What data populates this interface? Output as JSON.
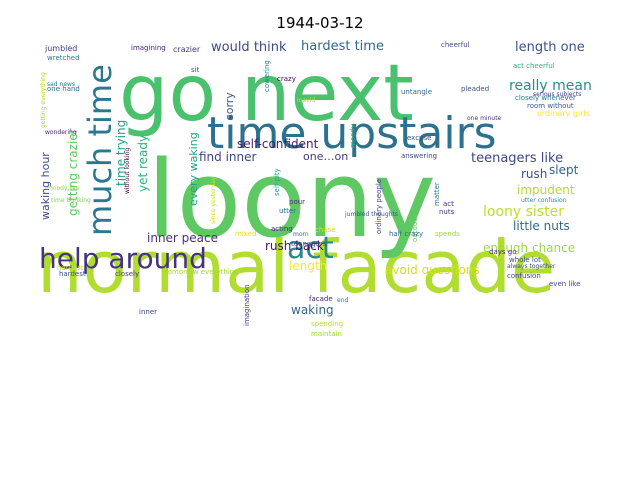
{
  "chart_data": {
    "type": "wordcloud",
    "title": "1944-03-12",
    "words": [
      {
        "text": "normal facade",
        "color": "#b0dd2f"
      },
      {
        "text": "loony",
        "color": "#5ec962"
      },
      {
        "text": "go next",
        "color": "#4ac16d"
      },
      {
        "text": "time upstairs",
        "color": "#2c728e"
      },
      {
        "text": "help around",
        "color": "#46337f"
      },
      {
        "text": "much time",
        "color": "#2a788e"
      },
      {
        "text": "act",
        "color": "#238a8d"
      },
      {
        "text": "hardest time",
        "color": "#31688e"
      },
      {
        "text": "length one",
        "color": "#3b528b"
      },
      {
        "text": "would think",
        "color": "#3e4a89"
      },
      {
        "text": "really mean",
        "color": "#21918c"
      },
      {
        "text": "self-confident",
        "color": "#481b6d"
      },
      {
        "text": "find inner",
        "color": "#414487"
      },
      {
        "text": "one…on",
        "color": "#443983"
      },
      {
        "text": "teenagers like",
        "color": "#404588"
      },
      {
        "text": "getting crazier",
        "color": "#5ec962"
      },
      {
        "text": "waking hour",
        "color": "#3e4c8a"
      },
      {
        "text": "yet ready",
        "color": "#2fb47c"
      },
      {
        "text": "sorry",
        "color": "#38598c"
      },
      {
        "text": "time trying",
        "color": "#1fa088"
      },
      {
        "text": "every waking",
        "color": "#20a486"
      },
      {
        "text": "inner peace",
        "color": "#46307e"
      },
      {
        "text": "rush back",
        "color": "#471365"
      },
      {
        "text": "length",
        "color": "#fde725"
      },
      {
        "text": "waking",
        "color": "#31688e"
      },
      {
        "text": "avoid questions",
        "color": "#d8e219"
      },
      {
        "text": "enough chance",
        "color": "#9bd93c"
      },
      {
        "text": "little nuts",
        "color": "#30688e"
      },
      {
        "text": "loony sister",
        "color": "#bddf26"
      },
      {
        "text": "impudent",
        "color": "#b5de2b"
      },
      {
        "text": "rush",
        "color": "#3d4e8a"
      },
      {
        "text": "slept",
        "color": "#33638d"
      },
      {
        "text": "jumbled",
        "color": "#443983"
      },
      {
        "text": "wretched",
        "color": "#287c8e"
      },
      {
        "text": "one hand",
        "color": "#2c728e"
      },
      {
        "text": "sad news",
        "color": "#2a788e"
      },
      {
        "text": "getting everything",
        "color": "#addc30"
      },
      {
        "text": "wondering",
        "color": "#482677"
      },
      {
        "text": "moody like",
        "color": "#8fd744"
      },
      {
        "text": "time thinking",
        "color": "#7ad151"
      },
      {
        "text": "hardest",
        "color": "#3b528b"
      },
      {
        "text": "imagining",
        "color": "#482173"
      },
      {
        "text": "crazier",
        "color": "#453882"
      },
      {
        "text": "cheerful",
        "color": "#404688"
      },
      {
        "text": "act cheerful",
        "color": "#2db27d"
      },
      {
        "text": "closely whenever",
        "color": "#2a788e"
      },
      {
        "text": "room without",
        "color": "#355f8d"
      },
      {
        "text": "serious subjects",
        "color": "#443a83"
      },
      {
        "text": "pleaded",
        "color": "#3b528b"
      },
      {
        "text": "ordinary girls",
        "color": "#fde725"
      },
      {
        "text": "one minute",
        "color": "#46337f"
      },
      {
        "text": "untangle",
        "color": "#31688e"
      },
      {
        "text": "sit",
        "color": "#3e4989"
      },
      {
        "text": "crazy",
        "color": "#440154"
      },
      {
        "text": "cowering",
        "color": "#26828e"
      },
      {
        "text": "loavid",
        "color": "#c2df23"
      },
      {
        "text": "excuse",
        "color": "#3b528b"
      },
      {
        "text": "answering",
        "color": "#3e4a89"
      },
      {
        "text": "moody",
        "color": "#29af7f"
      },
      {
        "text": "ordinary people",
        "color": "#414487"
      },
      {
        "text": "matter",
        "color": "#2a788e"
      },
      {
        "text": "act",
        "color": "#46327e"
      },
      {
        "text": "utter confusion",
        "color": "#21918c"
      },
      {
        "text": "days go",
        "color": "#482878"
      },
      {
        "text": "whole lot",
        "color": "#3b528b"
      },
      {
        "text": "nuts",
        "color": "#46337f"
      },
      {
        "text": "spends",
        "color": "#a2da37"
      },
      {
        "text": "outdoors",
        "color": "#5ec962"
      },
      {
        "text": "always together",
        "color": "#3e4c8a"
      },
      {
        "text": "confusion",
        "color": "#443983"
      },
      {
        "text": "even like",
        "color": "#404588"
      },
      {
        "text": "half crazy",
        "color": "#2e6f8e"
      },
      {
        "text": "jumbled thoughts",
        "color": "#3a548c"
      },
      {
        "text": "acting",
        "color": "#482677"
      },
      {
        "text": "morn",
        "color": "#31688e"
      },
      {
        "text": "chase",
        "color": "#cde11d"
      },
      {
        "text": "teenagers",
        "color": "#3e4a89"
      },
      {
        "text": "facade",
        "color": "#482173"
      },
      {
        "text": "spending",
        "color": "#b5de2b"
      },
      {
        "text": "maintain",
        "color": "#9bd93c"
      },
      {
        "text": "end",
        "color": "#2a788e"
      },
      {
        "text": "lie",
        "color": "#5ec962"
      },
      {
        "text": "pour",
        "color": "#46327e"
      },
      {
        "text": "utter",
        "color": "#2d708e"
      },
      {
        "text": "self-pity",
        "color": "#20a486"
      },
      {
        "text": "since yesterday",
        "color": "#c8e020"
      },
      {
        "text": "mixed",
        "color": "#e7e419"
      },
      {
        "text": "without looking",
        "color": "#440154"
      },
      {
        "text": "imagination",
        "color": "#463480"
      },
      {
        "text": "inner",
        "color": "#404688"
      },
      {
        "text": "closely",
        "color": "#443983"
      },
      {
        "text": "tomorrow everything",
        "color": "#a2da37"
      },
      {
        "text": "hardest",
        "color": "#bddf26"
      }
    ]
  }
}
